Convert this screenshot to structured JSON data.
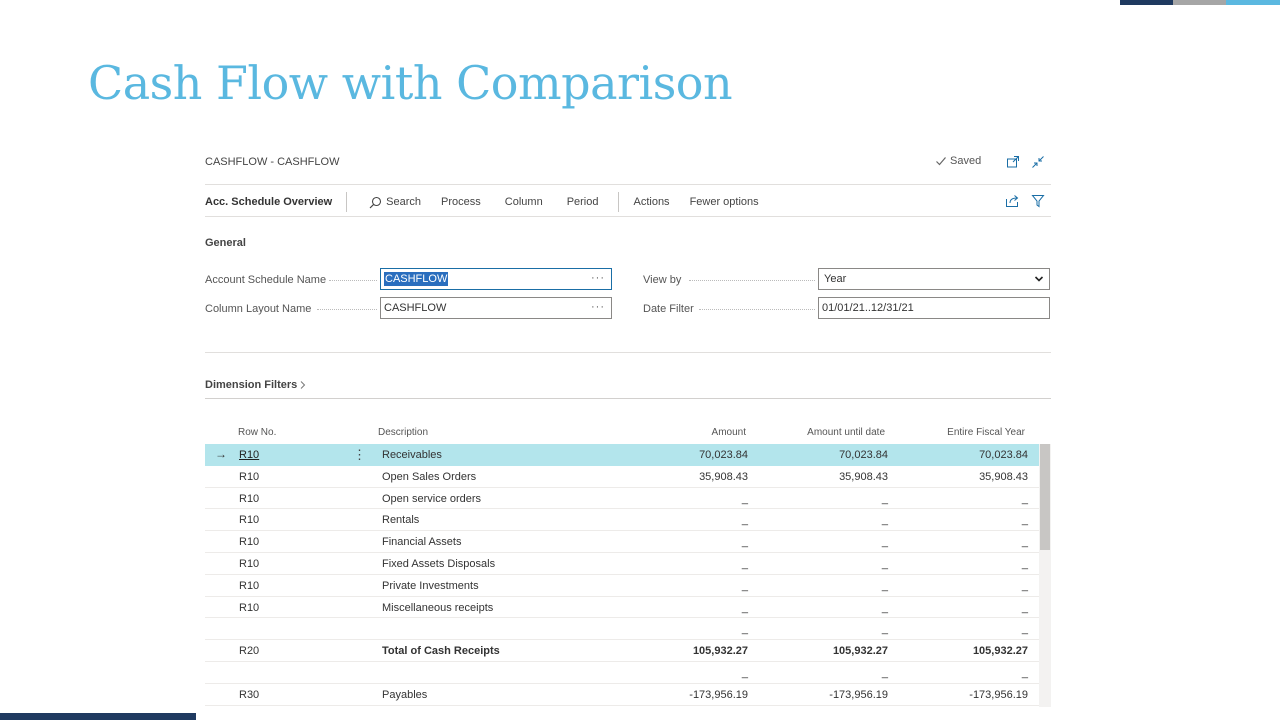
{
  "slide": {
    "title": "Cash Flow with Comparison"
  },
  "header": {
    "breadcrumb": "CASHFLOW - CASHFLOW",
    "saved_label": "Saved"
  },
  "actionbar": {
    "title": "Acc. Schedule Overview",
    "search_label": "Search",
    "items": [
      "Process",
      "Column",
      "Period"
    ],
    "actions_label": "Actions",
    "fewer_label": "Fewer options"
  },
  "general": {
    "title": "General",
    "account_schedule_label": "Account Schedule Name",
    "account_schedule_value": "CASHFLOW",
    "column_layout_label": "Column Layout Name",
    "column_layout_value": "CASHFLOW",
    "view_by_label": "View by",
    "view_by_value": "Year",
    "date_filter_label": "Date Filter",
    "date_filter_value": "01/01/21..12/31/21"
  },
  "dimension_filters": {
    "title": "Dimension Filters"
  },
  "grid": {
    "columns": [
      "Row No.",
      "Description",
      "Amount",
      "Amount until date",
      "Entire Fiscal Year"
    ],
    "rows": [
      {
        "row_no": "R10",
        "desc": "Receivables",
        "amount": "70,023.84",
        "until": "70,023.84",
        "fiscal": "70,023.84"
      },
      {
        "row_no": "R10",
        "desc": "Open Sales Orders",
        "amount": "35,908.43",
        "until": "35,908.43",
        "fiscal": "35,908.43"
      },
      {
        "row_no": "R10",
        "desc": "Open service orders",
        "amount": "_",
        "until": "_",
        "fiscal": "_"
      },
      {
        "row_no": "R10",
        "desc": "Rentals",
        "amount": "_",
        "until": "_",
        "fiscal": "_"
      },
      {
        "row_no": "R10",
        "desc": "Financial Assets",
        "amount": "_",
        "until": "_",
        "fiscal": "_"
      },
      {
        "row_no": "R10",
        "desc": "Fixed Assets Disposals",
        "amount": "_",
        "until": "_",
        "fiscal": "_"
      },
      {
        "row_no": "R10",
        "desc": "Private Investments",
        "amount": "_",
        "until": "_",
        "fiscal": "_"
      },
      {
        "row_no": "R10",
        "desc": "Miscellaneous receipts",
        "amount": "_",
        "until": "_",
        "fiscal": "_"
      },
      {
        "row_no": "",
        "desc": "",
        "amount": "_",
        "until": "_",
        "fiscal": "_"
      },
      {
        "row_no": "R20",
        "desc": "Total of Cash Receipts",
        "amount": "105,932.27",
        "until": "105,932.27",
        "fiscal": "105,932.27"
      },
      {
        "row_no": "",
        "desc": "",
        "amount": "_",
        "until": "_",
        "fiscal": "_"
      },
      {
        "row_no": "R30",
        "desc": "Payables",
        "amount": "-173,956.19",
        "until": "-173,956.19",
        "fiscal": "-173,956.19"
      }
    ]
  },
  "colors": {
    "accent": "#5ab8e0",
    "selected_row": "#b3e5ec",
    "deco_navy": "#1f3a60"
  }
}
